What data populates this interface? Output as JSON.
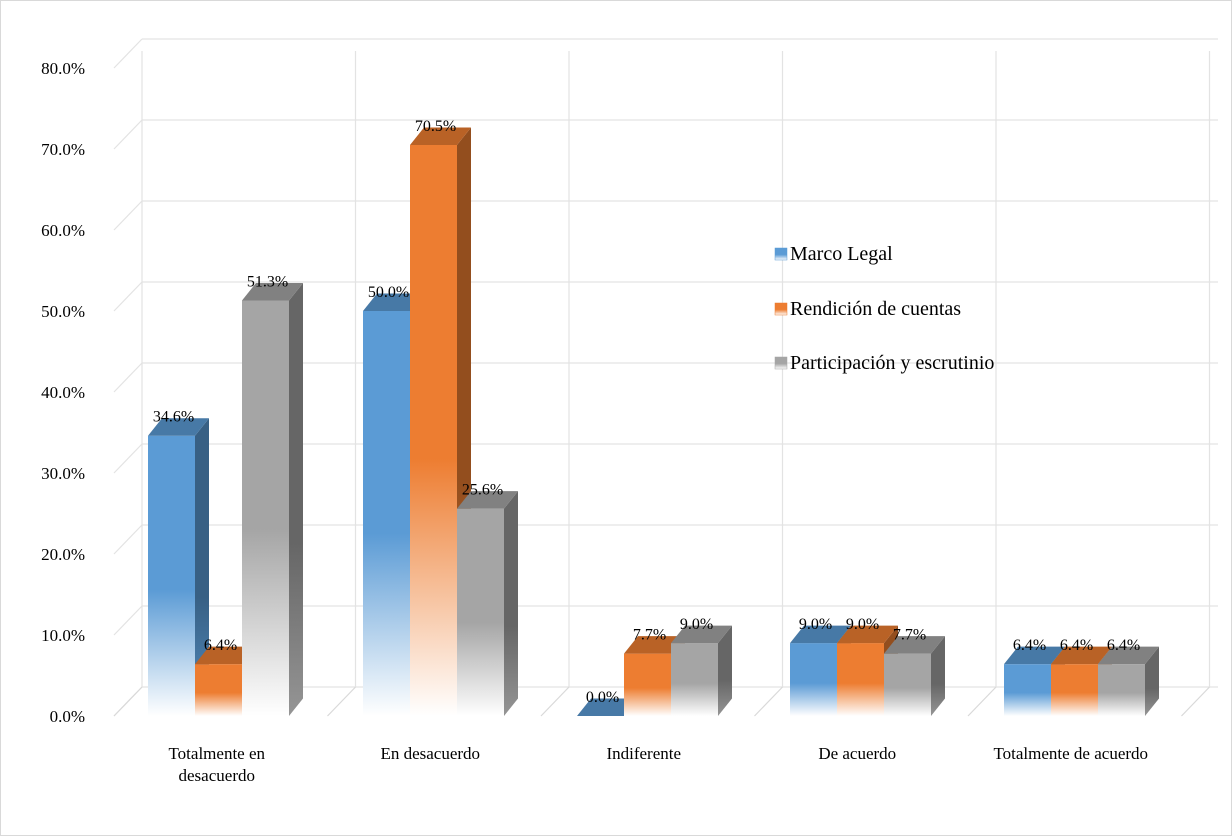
{
  "chart_data": {
    "type": "bar",
    "title": "",
    "xlabel": "",
    "ylabel": "",
    "categories": [
      [
        "Totalmente en",
        "desacuerdo"
      ],
      [
        "En desacuerdo"
      ],
      [
        "Indiferente"
      ],
      [
        "De acuerdo"
      ],
      [
        "Totalmente de acuerdo"
      ]
    ],
    "series": [
      {
        "name": "Marco Legal",
        "values": [
          34.6,
          50.0,
          0.0,
          9.0,
          6.4
        ],
        "labels": [
          "34.6%",
          "50.0%",
          "0.0%",
          "9.0%",
          "6.4%"
        ],
        "color": "#5b9bd5"
      },
      {
        "name": "Rendición de cuentas",
        "values": [
          6.4,
          70.5,
          7.7,
          9.0,
          6.4
        ],
        "labels": [
          "6.4%",
          "70.5%",
          "7.7%",
          "9.0%",
          "6.4%"
        ],
        "color": "#ed7d31"
      },
      {
        "name": "Participación y escrutinio",
        "values": [
          51.3,
          25.6,
          9.0,
          7.7,
          6.4
        ],
        "labels": [
          "51.3%",
          "25.6%",
          "9.0%",
          "7.7%",
          "6.4%"
        ],
        "color": "#a5a5a5"
      }
    ],
    "ylim": [
      0,
      80
    ],
    "yticks": [
      "0.0%",
      "10.0%",
      "20.0%",
      "30.0%",
      "40.0%",
      "50.0%",
      "60.0%",
      "70.0%",
      "80.0%"
    ],
    "grid": true,
    "legend_position": "right"
  }
}
